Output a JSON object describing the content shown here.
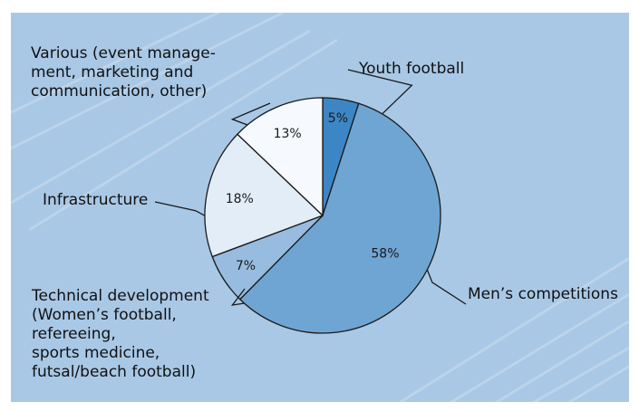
{
  "colors": {
    "background": "#a8c8e6",
    "outline": "#1a1a1a"
  },
  "chart_data": {
    "type": "pie",
    "title": "",
    "unit": "%",
    "slices": [
      {
        "label": "Youth football",
        "value": 5,
        "value_label": "5%",
        "color": "#3d86c6"
      },
      {
        "label": "Men’s competitions",
        "value": 58,
        "value_label": "58%",
        "color": "#6fa5d2"
      },
      {
        "label": "Technical development\n(Women’s football,\nrefereeing,\nsports medicine,\nfutsal/beach football)",
        "value": 7,
        "value_label": "7%",
        "color": "#97bcdf"
      },
      {
        "label": "Infrastructure",
        "value": 18,
        "value_label": "18%",
        "color": "#e2edf7"
      },
      {
        "label": "Various (event manage-\nment, marketing and\ncommunication, other)",
        "value": 13,
        "value_label": "13%",
        "color": "#f6f9fd"
      }
    ]
  }
}
